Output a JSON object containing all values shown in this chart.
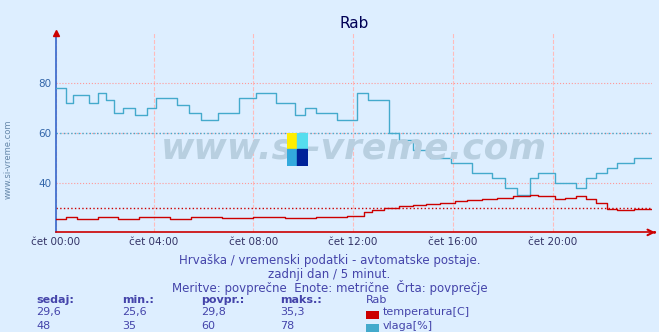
{
  "title": "Rab",
  "background_color": "#ddeeff",
  "plot_bg_color": "#ddeeff",
  "fig_bg_color": "#ddeeff",
  "xlabel_ticks": [
    "čet 00:00",
    "čet 04:00",
    "čet 08:00",
    "čet 12:00",
    "čet 16:00",
    "čet 20:00"
  ],
  "tick_positions_norm": [
    0.0,
    0.1667,
    0.3333,
    0.5,
    0.6667,
    0.8333
  ],
  "total_points": 288,
  "ylim": [
    20,
    100
  ],
  "yticks": [
    40,
    60,
    80
  ],
  "hgrid_color": "#ff9999",
  "vgrid_color": "#ffbbbb",
  "temp_color": "#cc0000",
  "hum_color": "#44aacc",
  "temp_avg": 29.8,
  "hum_avg": 60,
  "footer_line1": "Hrvaška / vremenski podatki - avtomatske postaje.",
  "footer_line2": "zadnji dan / 5 minut.",
  "footer_line3": "Meritve: povprečne  Enote: metrične  Črta: povprečje",
  "footer_color": "#4444aa",
  "footer_fontsize": 8.5,
  "table_headers": [
    "sedaj:",
    "min.:",
    "povpr.:",
    "maks.:",
    "Rab"
  ],
  "table_row1": [
    "29,6",
    "25,6",
    "29,8",
    "35,3",
    "temperatura[C]"
  ],
  "table_row2": [
    "48",
    "35",
    "60",
    "78",
    "vlaga[%]"
  ],
  "table_color": "#4444aa",
  "title_color": "#000055",
  "watermark_text": "www.si-vreme.com",
  "watermark_color": "#b8cfe0",
  "watermark_fontsize": 26,
  "spine_left_color": "#3366cc",
  "spine_bottom_color": "#cc0000",
  "tick_label_color": "#333366",
  "ytick_label_color": "#3366aa"
}
